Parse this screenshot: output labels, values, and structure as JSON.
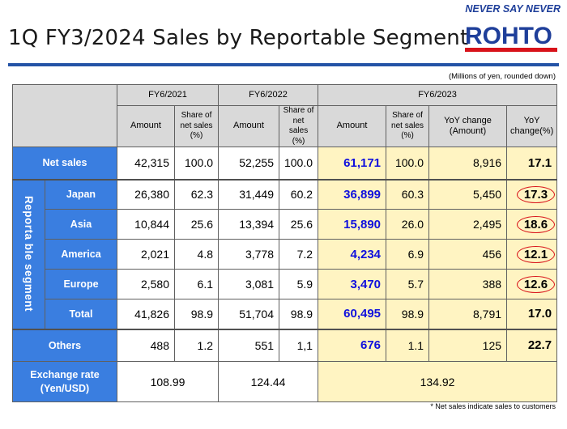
{
  "header": {
    "title": "1Q FY3/2024 Sales by Reportable Segment",
    "slogan": "NEVER SAY NEVER",
    "logo_text": "ROHTO",
    "unit_note": "(Millions of yen, rounded down)",
    "footnote": "* Net sales indicate sales to customers"
  },
  "table": {
    "periods": [
      "FY6/2021",
      "FY6/2022",
      "FY6/2023"
    ],
    "col_amount": "Amount",
    "col_share": "Share of net sales (%)",
    "col_yoy_amount": "YoY change (Amount)",
    "col_yoy_pct": "YoY change(%)",
    "segment_label": "Reporta ble segment",
    "rows": [
      {
        "label": "Net sales",
        "a21": "42,315",
        "s21": "100.0",
        "a22": "52,255",
        "s22": "100.0",
        "a23": "61,171",
        "s23": "100.0",
        "ya": "8,916",
        "yp": "17.1"
      },
      {
        "label": "Japan",
        "a21": "26,380",
        "s21": "62.3",
        "a22": "31,449",
        "s22": "60.2",
        "a23": "36,899",
        "s23": "60.3",
        "ya": "5,450",
        "yp": "17.3"
      },
      {
        "label": "Asia",
        "a21": "10,844",
        "s21": "25.6",
        "a22": "13,394",
        "s22": "25.6",
        "a23": "15,890",
        "s23": "26.0",
        "ya": "2,495",
        "yp": "18.6"
      },
      {
        "label": "America",
        "a21": "2,021",
        "s21": "4.8",
        "a22": "3,778",
        "s22": "7.2",
        "a23": "4,234",
        "s23": "6.9",
        "ya": "456",
        "yp": "12.1"
      },
      {
        "label": "Europe",
        "a21": "2,580",
        "s21": "6.1",
        "a22": "3,081",
        "s22": "5.9",
        "a23": "3,470",
        "s23": "5.7",
        "ya": "388",
        "yp": "12.6"
      },
      {
        "label": "Total",
        "a21": "41,826",
        "s21": "98.9",
        "a22": "51,704",
        "s22": "98.9",
        "a23": "60,495",
        "s23": "98.9",
        "ya": "8,791",
        "yp": "17.0"
      },
      {
        "label": "Others",
        "a21": "488",
        "s21": "1.2",
        "a22": "551",
        "s22": "1,1",
        "a23": "676",
        "s23": "1.1",
        "ya": "125",
        "yp": "22.7"
      }
    ],
    "exchange": {
      "label": "Exchange rate (Yen/USD)",
      "v21": "108.99",
      "v22": "124.44",
      "v23": "134.92"
    }
  }
}
